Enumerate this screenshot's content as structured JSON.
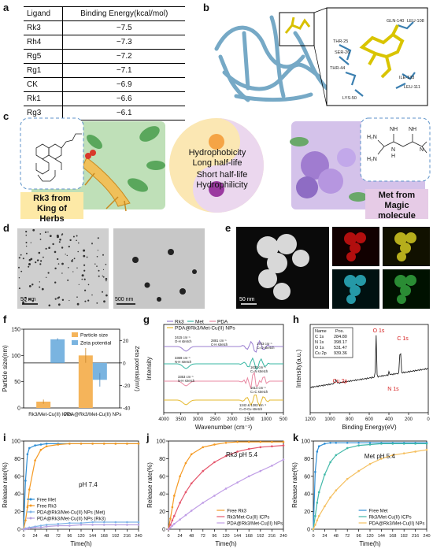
{
  "panels": {
    "a": "a",
    "b": "b",
    "c": "c",
    "d": "d",
    "e": "e",
    "f": "f",
    "g": "g",
    "h": "h",
    "i": "i",
    "j": "j",
    "k": "k"
  },
  "table_a": {
    "headers": [
      "Ligand",
      "Binding Energy(kcal/mol)"
    ],
    "rows": [
      [
        "Rk3",
        "−7.5"
      ],
      [
        "Rh4",
        "−7.3"
      ],
      [
        "Rg5",
        "−7.2"
      ],
      [
        "Rg1",
        "−7.1"
      ],
      [
        "CK",
        "−6.9"
      ],
      [
        "Rk1",
        "−6.6"
      ],
      [
        "Rg3",
        "−6.1"
      ]
    ]
  },
  "panel_b": {
    "residues": [
      "GLN-140",
      "LEU-108",
      "THR-25",
      "SER-26",
      "THR-44",
      "ILE-133",
      "LEU-111",
      "LYS-50"
    ]
  },
  "panel_c": {
    "left_caption": [
      "Rk3 from",
      "King of",
      "Herbs"
    ],
    "right_caption": [
      "Met from",
      "Magic",
      "molecule"
    ],
    "center_top": [
      "Hydrophobicity",
      "Long half-life"
    ],
    "center_bottom": [
      "Short half-life",
      "Hydrophilicity"
    ],
    "met_atoms": {
      "nh": "NH",
      "n": "N",
      "h2n_top": "H₂N",
      "h2n_bottom": "H₂N",
      "nh_mid": "N",
      "h": "H"
    }
  },
  "panel_d": {
    "scale1": "50 nm",
    "scale2": "500 nm"
  },
  "panel_e": {
    "scale": "50 nm"
  },
  "chart_data": [
    {
      "id": "f",
      "type": "bar",
      "categories": [
        "Rk3/Met-Cu(II) ICPs",
        "PDA@Rk3/Met-Cu(II) NPs"
      ],
      "series": [
        {
          "name": "Particle size",
          "values": [
            12,
            100
          ],
          "errors": [
            4,
            14
          ],
          "color": "#f5b45a"
        },
        {
          "name": "Zeta potential",
          "values": [
            21,
            -15
          ],
          "errors": [
            1,
            6
          ],
          "color": "#7ab4e0"
        }
      ],
      "ylabel": "Particle size(nm)",
      "y2label": "Zeta potential(mV)",
      "yticks": [
        "0",
        "50",
        "100",
        "150"
      ],
      "y2ticks": [
        "-40",
        "-20",
        "0",
        "20"
      ],
      "legend": "top-right"
    },
    {
      "id": "g",
      "type": "line",
      "series": [
        {
          "name": "Rk3",
          "color": "#9b7fd1"
        },
        {
          "name": "Met",
          "color": "#38b7a3"
        },
        {
          "name": "PDA",
          "color": "#e98aa3"
        },
        {
          "name": "PDA@Rk3/Met-Cu(II) NPs",
          "color": "#e6b92e"
        }
      ],
      "xlabel": "Wavenumber (cm⁻¹)",
      "ylabel": "Intensity",
      "xticks": [
        "4000",
        "3500",
        "3000",
        "2500",
        "2000",
        "1500",
        "1000",
        "500"
      ],
      "annotations": [
        "3415 cm⁻¹",
        "O-H stretch",
        "2881 cm⁻¹",
        "C-H stretch",
        "1703 cm⁻¹",
        "C=O stretch",
        "3369 cm⁻¹",
        "N-H stretch",
        "1630 cm⁻¹",
        "C=N stretch",
        "3353 cm⁻¹",
        "N-H stretch",
        "1614 cm⁻¹",
        "C=C stretch",
        "1242 & 1282 cm⁻¹",
        "C=O-Cu stretch"
      ]
    },
    {
      "id": "h",
      "type": "line",
      "xlabel": "Binding Energy(eV)",
      "ylabel": "Intensity(a.u.)",
      "xticks": [
        "1200",
        "1000",
        "800",
        "600",
        "400",
        "200",
        "0"
      ],
      "peaks": [
        "O 1s",
        "C 1s",
        "Cu 2p",
        "N 1s"
      ],
      "table": {
        "headers": [
          "Name",
          "Pos."
        ],
        "rows": [
          [
            "C 1s",
            "284.80"
          ],
          [
            "N 1s",
            "398.17"
          ],
          [
            "O 1s",
            "531.47"
          ],
          [
            "Cu 2p",
            "939.36"
          ]
        ]
      }
    },
    {
      "id": "i",
      "type": "line",
      "annotation": "pH 7.4",
      "x": [
        0,
        4,
        8,
        12,
        24,
        36,
        48,
        72,
        96,
        120,
        144,
        168,
        192,
        216,
        240
      ],
      "series": [
        {
          "name": "Free Met",
          "color": "#2f8fd6",
          "values": [
            0,
            55,
            85,
            92,
            95,
            96,
            97,
            97,
            97,
            97,
            97,
            97,
            97,
            97,
            97
          ]
        },
        {
          "name": "Free Rk3",
          "color": "#f59a23",
          "values": [
            0,
            10,
            25,
            45,
            78,
            90,
            94,
            96,
            97,
            97,
            97,
            97,
            97,
            97,
            97
          ]
        },
        {
          "name": "PDA@Rk3/Met-Cu(II) NPs (Met)",
          "color": "#7fb4e8",
          "values": [
            0,
            1,
            1,
            2,
            3,
            4,
            5,
            6,
            7,
            7,
            8,
            8,
            8,
            8,
            8
          ]
        },
        {
          "name": "PDA@Rk3/Met-Cu(II) NPs (Rk3)",
          "color": "#b6a0e0",
          "values": [
            0,
            0,
            1,
            1,
            2,
            2,
            3,
            4,
            4,
            5,
            5,
            5,
            5,
            5,
            5
          ]
        }
      ],
      "xlabel": "Time(h)",
      "ylabel": "Release rate(%)",
      "xticks": [
        "0",
        "24",
        "48",
        "72",
        "96",
        "120",
        "144",
        "168",
        "192",
        "216",
        "240"
      ],
      "yticks": [
        "0",
        "20",
        "40",
        "60",
        "80",
        "100"
      ],
      "ylim": [
        0,
        100
      ]
    },
    {
      "id": "j",
      "type": "line",
      "annotation": "Rk3 pH 5.4",
      "x": [
        0,
        4,
        8,
        12,
        24,
        36,
        48,
        72,
        96,
        120,
        144,
        168,
        192,
        216,
        240
      ],
      "series": [
        {
          "name": "Free Rk3",
          "color": "#f59a23",
          "values": [
            0,
            12,
            25,
            38,
            60,
            75,
            85,
            93,
            96,
            98,
            99,
            99,
            99,
            99,
            99
          ]
        },
        {
          "name": "Rk3/Met-Cu(II) ICPs",
          "color": "#e5566c",
          "values": [
            0,
            5,
            10,
            15,
            30,
            42,
            52,
            66,
            76,
            83,
            88,
            91,
            93,
            94,
            95
          ]
        },
        {
          "name": "PDA@Rk3/Met-Cu(II) NPs",
          "color": "#c09ee6",
          "values": [
            0,
            2,
            4,
            6,
            11,
            16,
            21,
            30,
            38,
            46,
            53,
            60,
            66,
            72,
            79
          ]
        }
      ],
      "xlabel": "Time(h)",
      "ylabel": "Release rate(%)",
      "xticks": [
        "0",
        "24",
        "48",
        "72",
        "96",
        "120",
        "144",
        "168",
        "192",
        "216",
        "240"
      ],
      "yticks": [
        "0",
        "20",
        "40",
        "60",
        "80",
        "100"
      ],
      "ylim": [
        0,
        100
      ]
    },
    {
      "id": "k",
      "type": "line",
      "annotation": "Met pH 5.4",
      "x": [
        0,
        4,
        8,
        12,
        24,
        36,
        48,
        72,
        96,
        120,
        144,
        168,
        192,
        216,
        240
      ],
      "series": [
        {
          "name": "Free Met",
          "color": "#2f8fd6",
          "values": [
            0,
            65,
            88,
            94,
            97,
            98,
            98,
            98,
            98,
            98,
            98,
            98,
            98,
            98,
            98
          ]
        },
        {
          "name": "Rk3/Met-Cu(II) ICPs",
          "color": "#40b8a8",
          "values": [
            0,
            15,
            30,
            42,
            62,
            76,
            84,
            92,
            95,
            96,
            97,
            97,
            97,
            97,
            97
          ]
        },
        {
          "name": "PDA@Rk3/Met-Cu(II) NPs",
          "color": "#f5c060",
          "values": [
            0,
            5,
            10,
            15,
            26,
            36,
            44,
            57,
            66,
            74,
            80,
            84,
            86,
            88,
            90
          ]
        }
      ],
      "xlabel": "Time(h)",
      "ylabel": "Release rate(%)",
      "xticks": [
        "0",
        "24",
        "48",
        "72",
        "96",
        "120",
        "144",
        "168",
        "192",
        "216",
        "240"
      ],
      "yticks": [
        "0",
        "20",
        "40",
        "60",
        "80",
        "100"
      ],
      "ylim": [
        0,
        100
      ]
    }
  ]
}
